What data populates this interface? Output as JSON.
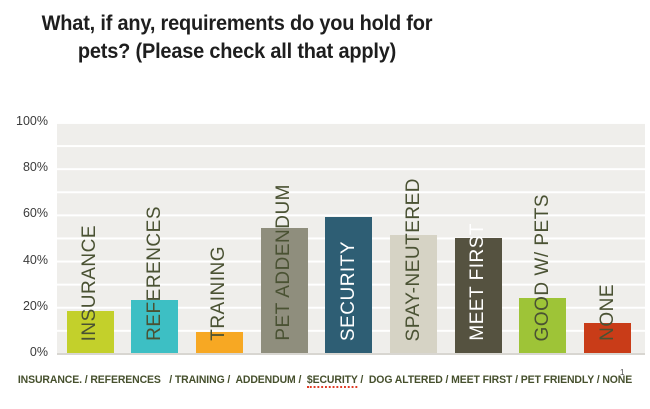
{
  "page": {
    "title": "What, if any, requirements do you hold for\npets? (Please check all that apply)",
    "slide_number": "1"
  },
  "chart_data": {
    "type": "bar",
    "title": "What, if any, requirements do you hold for pets? (Please check all that apply)",
    "unit": "%",
    "ylim": [
      0,
      100
    ],
    "y_ticks": [
      "100%",
      "80%",
      "60%",
      "40%",
      "20%",
      "0%"
    ],
    "grid": "horizontal white lines every 10% on light gray background",
    "legend": "none",
    "categories": [
      "INSURANCE",
      "REFERENCES",
      "TRAINING",
      "PET ADDENDUM",
      "SECURITY",
      "SPAY-NEUTERED",
      "MEET FIRST",
      "GOOD W/ PETS",
      "NONE"
    ],
    "values": [
      18,
      23,
      9,
      54,
      59,
      51,
      50,
      24,
      13
    ],
    "bars": [
      {
        "label": "INSURANCE",
        "value": 18,
        "color": "#c3d02b",
        "label_style": "dark"
      },
      {
        "label": "REFERENCES",
        "value": 23,
        "color": "#3dbfc4",
        "label_style": "dark"
      },
      {
        "label": "TRAINING",
        "value": 9,
        "color": "#f7a823",
        "label_style": "dark"
      },
      {
        "label": "PET ADDENDUM",
        "value": 54,
        "color": "#8f8e7d",
        "label_style": "dark"
      },
      {
        "label": "SECURITY",
        "value": 59,
        "color": "#2e5e74",
        "label_style": "light"
      },
      {
        "label": "SPAY-NEUTERED",
        "value": 51,
        "color": "#d6d3c5",
        "label_style": "dark"
      },
      {
        "label": "MEET FIRST",
        "value": 50,
        "color": "#555240",
        "label_style": "light"
      },
      {
        "label": "GOOD W/ PETS",
        "value": 24,
        "color": "#9ec437",
        "label_style": "dark"
      },
      {
        "label": "NONE",
        "value": 13,
        "color": "#c93c18",
        "label_style": "dark"
      }
    ]
  },
  "footer": {
    "part1": "INSURANCE. / REFERENCES   / TRAINING /  ADDENDUM /  ",
    "misspelled": "$ECURITY",
    "part2": " /  DOG ALTERED / MEET FIRST / PET FRIENDLY / NONE"
  },
  "colors": {
    "plot_bg": "#efeeeb",
    "gridline": "#ffffff",
    "axis_line": "#d8d6d1",
    "label_dark": "#4a5233",
    "label_light": "#ffffff",
    "title_text": "#1e1e1e",
    "tick_text": "#3b3b3b",
    "footer_text": "#46502d",
    "spellcheck_underline": "#e03a24"
  }
}
